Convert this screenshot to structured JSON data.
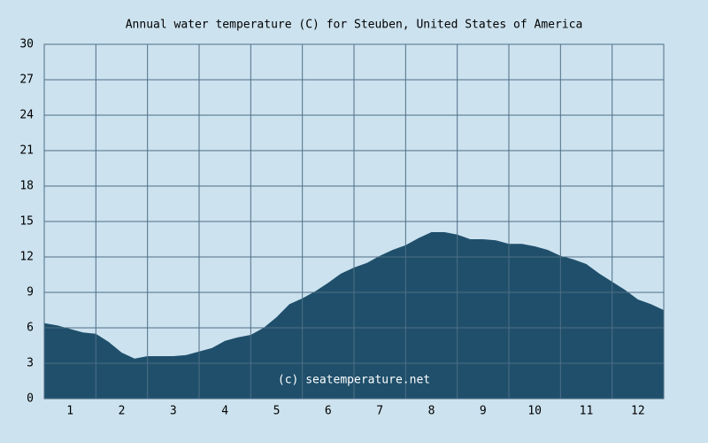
{
  "chart_data": {
    "type": "area",
    "title": "Annual water temperature (C) for Steuben, United States of America",
    "annotation": "(c) seatemperature.net",
    "color": "#1f4f6b",
    "grid": true,
    "xlim": [
      0.5,
      12.5
    ],
    "xticks": [
      1,
      2,
      3,
      4,
      5,
      6,
      7,
      8,
      9,
      10,
      11,
      12
    ],
    "ylim": [
      0,
      30
    ],
    "yticks": [
      0,
      3,
      6,
      9,
      12,
      15,
      18,
      21,
      24,
      27,
      30
    ],
    "x": [
      0.5,
      0.75,
      1,
      1.25,
      1.5,
      1.75,
      2,
      2.25,
      2.5,
      2.75,
      3,
      3.25,
      3.5,
      3.75,
      4,
      4.25,
      4.5,
      4.75,
      5,
      5.25,
      5.5,
      5.75,
      6,
      6.25,
      6.5,
      6.75,
      7,
      7.25,
      7.5,
      7.75,
      8,
      8.25,
      8.5,
      8.75,
      9,
      9.25,
      9.5,
      9.75,
      10,
      10.25,
      10.5,
      10.75,
      11,
      11.25,
      11.5,
      11.75,
      12,
      12.25,
      12.5
    ],
    "values": [
      6.4,
      6.2,
      5.9,
      5.6,
      5.5,
      4.8,
      3.9,
      3.4,
      3.6,
      3.6,
      3.6,
      3.7,
      4.0,
      4.3,
      4.9,
      5.2,
      5.4,
      6.0,
      6.9,
      8.0,
      8.5,
      9.1,
      9.8,
      10.6,
      11.1,
      11.5,
      12.1,
      12.6,
      13.0,
      13.6,
      14.1,
      14.1,
      13.9,
      13.5,
      13.5,
      13.4,
      13.1,
      13.1,
      12.9,
      12.6,
      12.1,
      11.8,
      11.4,
      10.6,
      9.9,
      9.2,
      8.4,
      8.0,
      7.5
    ]
  }
}
